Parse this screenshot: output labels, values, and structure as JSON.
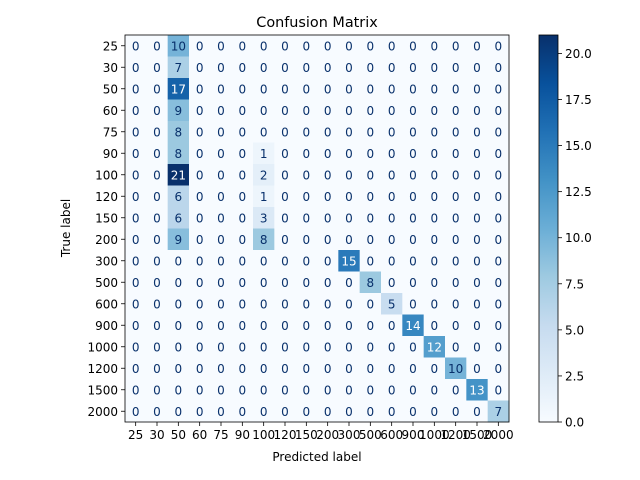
{
  "chart_data": {
    "type": "heatmap",
    "title": "Confusion Matrix",
    "xlabel": "Predicted label",
    "ylabel": "True label",
    "labels": [
      "25",
      "30",
      "50",
      "60",
      "75",
      "90",
      "100",
      "120",
      "150",
      "200",
      "300",
      "500",
      "600",
      "900",
      "1000",
      "1200",
      "1500",
      "2000"
    ],
    "matrix": [
      [
        0,
        0,
        10,
        0,
        0,
        0,
        0,
        0,
        0,
        0,
        0,
        0,
        0,
        0,
        0,
        0,
        0,
        0
      ],
      [
        0,
        0,
        7,
        0,
        0,
        0,
        0,
        0,
        0,
        0,
        0,
        0,
        0,
        0,
        0,
        0,
        0,
        0
      ],
      [
        0,
        0,
        17,
        0,
        0,
        0,
        0,
        0,
        0,
        0,
        0,
        0,
        0,
        0,
        0,
        0,
        0,
        0
      ],
      [
        0,
        0,
        9,
        0,
        0,
        0,
        0,
        0,
        0,
        0,
        0,
        0,
        0,
        0,
        0,
        0,
        0,
        0
      ],
      [
        0,
        0,
        8,
        0,
        0,
        0,
        0,
        0,
        0,
        0,
        0,
        0,
        0,
        0,
        0,
        0,
        0,
        0
      ],
      [
        0,
        0,
        8,
        0,
        0,
        0,
        1,
        0,
        0,
        0,
        0,
        0,
        0,
        0,
        0,
        0,
        0,
        0
      ],
      [
        0,
        0,
        21,
        0,
        0,
        0,
        2,
        0,
        0,
        0,
        0,
        0,
        0,
        0,
        0,
        0,
        0,
        0
      ],
      [
        0,
        0,
        6,
        0,
        0,
        0,
        1,
        0,
        0,
        0,
        0,
        0,
        0,
        0,
        0,
        0,
        0,
        0
      ],
      [
        0,
        0,
        6,
        0,
        0,
        0,
        3,
        0,
        0,
        0,
        0,
        0,
        0,
        0,
        0,
        0,
        0,
        0
      ],
      [
        0,
        0,
        9,
        0,
        0,
        0,
        8,
        0,
        0,
        0,
        0,
        0,
        0,
        0,
        0,
        0,
        0,
        0
      ],
      [
        0,
        0,
        0,
        0,
        0,
        0,
        0,
        0,
        0,
        0,
        15,
        0,
        0,
        0,
        0,
        0,
        0,
        0
      ],
      [
        0,
        0,
        0,
        0,
        0,
        0,
        0,
        0,
        0,
        0,
        0,
        8,
        0,
        0,
        0,
        0,
        0,
        0
      ],
      [
        0,
        0,
        0,
        0,
        0,
        0,
        0,
        0,
        0,
        0,
        0,
        0,
        5,
        0,
        0,
        0,
        0,
        0
      ],
      [
        0,
        0,
        0,
        0,
        0,
        0,
        0,
        0,
        0,
        0,
        0,
        0,
        0,
        14,
        0,
        0,
        0,
        0
      ],
      [
        0,
        0,
        0,
        0,
        0,
        0,
        0,
        0,
        0,
        0,
        0,
        0,
        0,
        0,
        12,
        0,
        0,
        0
      ],
      [
        0,
        0,
        0,
        0,
        0,
        0,
        0,
        0,
        0,
        0,
        0,
        0,
        0,
        0,
        0,
        10,
        0,
        0
      ],
      [
        0,
        0,
        0,
        0,
        0,
        0,
        0,
        0,
        0,
        0,
        0,
        0,
        0,
        0,
        0,
        0,
        13,
        0
      ],
      [
        0,
        0,
        0,
        0,
        0,
        0,
        0,
        0,
        0,
        0,
        0,
        0,
        0,
        0,
        0,
        0,
        0,
        7
      ]
    ],
    "colormap": "Blues",
    "colorbar": {
      "range": [
        0,
        21
      ],
      "ticks": [
        "0.0",
        "2.5",
        "5.0",
        "7.5",
        "10.0",
        "12.5",
        "15.0",
        "17.5",
        "20.0"
      ]
    }
  }
}
